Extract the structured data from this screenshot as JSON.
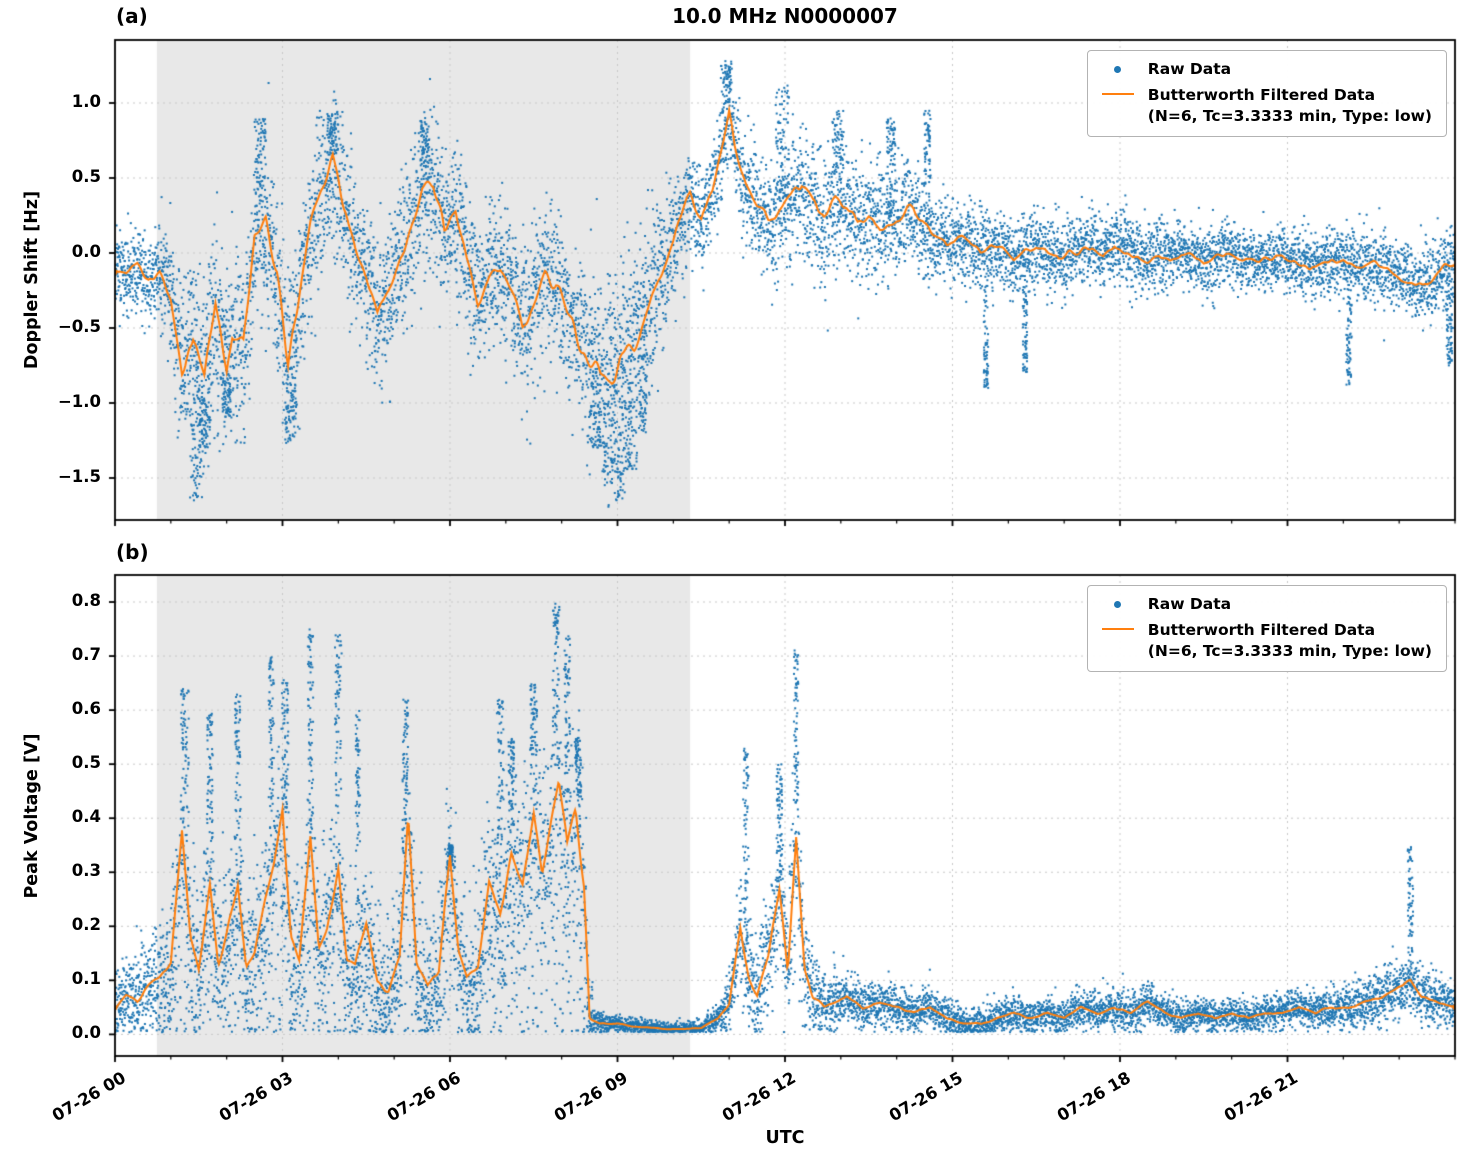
{
  "figure": {
    "title": "10.0 MHz N0000007",
    "colors": {
      "raw": "#1f77b4",
      "filtered": "#ff7f0e",
      "shade": "#e8e8e8",
      "grid": "#c9c9c9",
      "spine": "#000000",
      "background": "#ffffff"
    },
    "x_axis": {
      "label": "UTC",
      "lim_hours": [
        0,
        24
      ],
      "major_tick_hours": [
        0,
        3,
        6,
        9,
        12,
        15,
        18,
        21
      ],
      "tick_labels": [
        "07-26 00",
        "07-26 03",
        "07-26 06",
        "07-26 09",
        "07-26 12",
        "07-26 15",
        "07-26 18",
        "07-26 21"
      ],
      "minor_tick_step_hours": 1
    }
  },
  "legend": {
    "raw_label": "Raw Data",
    "filtered_label": "Butterworth Filtered Data",
    "filtered_sublabel": "(N=6, Tc=3.3333 min, Type: low)"
  },
  "chart_data": [
    {
      "type": "scatter",
      "panel": "(a)",
      "ylabel": "Doppler Shift [Hz]",
      "ylim": [
        -1.78,
        1.42
      ],
      "yticks": [
        1.0,
        0.5,
        0.0,
        -0.5,
        -1.0,
        -1.5
      ],
      "ytick_labels": [
        "1.0",
        "0.5",
        "0.0",
        "−0.5",
        "−1.0",
        "−1.5"
      ],
      "grid": true,
      "shade_hours": [
        0.75,
        10.3
      ],
      "clamp_positive": false,
      "wiggle": 0.13,
      "series": [
        {
          "name": "Raw Data",
          "type": "scatter",
          "points_estimated": true,
          "n_points": 9500,
          "seed": 11,
          "envelope_x": [
            0,
            0.75,
            1,
            1.5,
            2,
            2.5,
            3,
            3.5,
            4,
            4.5,
            5,
            5.5,
            6,
            6.5,
            7,
            7.5,
            8,
            8.5,
            9,
            9.5,
            10,
            10.5,
            11,
            11.5,
            12,
            12.5,
            13,
            14,
            15,
            16,
            17,
            18,
            19,
            20,
            21,
            22,
            23,
            24
          ],
          "envelope_std": [
            0.12,
            0.15,
            0.25,
            0.33,
            0.3,
            0.27,
            0.3,
            0.28,
            0.25,
            0.25,
            0.25,
            0.25,
            0.25,
            0.22,
            0.22,
            0.25,
            0.25,
            0.3,
            0.34,
            0.3,
            0.22,
            0.18,
            0.15,
            0.18,
            0.2,
            0.22,
            0.2,
            0.18,
            0.15,
            0.13,
            0.12,
            0.12,
            0.11,
            0.1,
            0.1,
            0.12,
            0.12,
            0.13
          ],
          "clusters": [
            {
              "t": 1.45,
              "peak": -1.65,
              "width": 0.12
            },
            {
              "t": 1.6,
              "peak": -1.3,
              "width": 0.1
            },
            {
              "t": 2.0,
              "peak": -1.1,
              "width": 0.08
            },
            {
              "t": 3.15,
              "peak": -1.25,
              "width": 0.1
            },
            {
              "t": 2.6,
              "peak": 0.9,
              "width": 0.1
            },
            {
              "t": 3.9,
              "peak": 0.95,
              "width": 0.1
            },
            {
              "t": 5.55,
              "peak": 0.9,
              "width": 0.08
            },
            {
              "t": 8.6,
              "peak": -1.3,
              "width": 0.1
            },
            {
              "t": 8.85,
              "peak": -1.55,
              "width": 0.12
            },
            {
              "t": 9.05,
              "peak": -1.65,
              "width": 0.1
            },
            {
              "t": 9.25,
              "peak": -1.45,
              "width": 0.1
            },
            {
              "t": 9.45,
              "peak": -1.2,
              "width": 0.08
            },
            {
              "t": 10.95,
              "peak": 1.28,
              "width": 0.1
            },
            {
              "t": 11.95,
              "peak": 1.12,
              "width": 0.12
            },
            {
              "t": 12.95,
              "peak": 0.95,
              "width": 0.1
            },
            {
              "t": 13.9,
              "peak": 0.9,
              "width": 0.08
            },
            {
              "t": 14.55,
              "peak": 0.95,
              "width": 0.06
            },
            {
              "t": 15.6,
              "peak": -0.9,
              "width": 0.04
            },
            {
              "t": 16.3,
              "peak": -0.8,
              "width": 0.04
            },
            {
              "t": 22.1,
              "peak": -0.9,
              "width": 0.05
            },
            {
              "t": 23.9,
              "peak": -0.75,
              "width": 0.05
            }
          ]
        },
        {
          "name": "Butterworth Filtered Data",
          "type": "line",
          "x": [
            0.0,
            0.2,
            0.4,
            0.6,
            0.8,
            1.0,
            1.2,
            1.4,
            1.6,
            1.8,
            2.0,
            2.1,
            2.3,
            2.5,
            2.7,
            2.9,
            3.0,
            3.1,
            3.3,
            3.5,
            3.7,
            3.9,
            4.1,
            4.3,
            4.5,
            4.7,
            4.9,
            5.1,
            5.3,
            5.5,
            5.7,
            5.9,
            6.1,
            6.3,
            6.5,
            6.7,
            6.9,
            7.1,
            7.3,
            7.5,
            7.7,
            7.9,
            8.1,
            8.3,
            8.5,
            8.7,
            8.9,
            9.1,
            9.3,
            9.5,
            9.7,
            9.9,
            10.1,
            10.3,
            10.5,
            10.7,
            10.9,
            11.0,
            11.1,
            11.3,
            11.5,
            11.7,
            11.9,
            12.1,
            12.3,
            12.5,
            12.7,
            12.9,
            13.1,
            13.3,
            13.5,
            13.7,
            13.9,
            14.1,
            14.3,
            14.5,
            14.7,
            14.9,
            15.1,
            15.3,
            15.5,
            15.7,
            15.9,
            16.1,
            16.3,
            16.5,
            16.7,
            16.9,
            17.1,
            17.3,
            17.5,
            17.7,
            17.9,
            18.1,
            18.3,
            18.5,
            18.7,
            18.9,
            19.1,
            19.3,
            19.5,
            19.7,
            19.9,
            20.2,
            20.5,
            20.8,
            21.1,
            21.4,
            21.7,
            22.0,
            22.3,
            22.6,
            22.9,
            23.2,
            23.5,
            23.8,
            24.0
          ],
          "y": [
            -0.1,
            -0.15,
            -0.1,
            -0.2,
            -0.15,
            -0.3,
            -0.75,
            -0.55,
            -0.85,
            -0.35,
            -0.8,
            -0.55,
            -0.65,
            0.1,
            0.2,
            -0.15,
            -0.45,
            -0.75,
            -0.25,
            0.15,
            0.4,
            0.6,
            0.3,
            0.05,
            -0.15,
            -0.45,
            -0.3,
            -0.05,
            0.15,
            0.45,
            0.5,
            0.15,
            0.3,
            -0.05,
            -0.3,
            -0.15,
            -0.1,
            -0.25,
            -0.5,
            -0.35,
            -0.15,
            -0.2,
            -0.4,
            -0.55,
            -0.7,
            -0.8,
            -0.75,
            -0.65,
            -0.55,
            -0.4,
            -0.25,
            -0.05,
            0.2,
            0.35,
            0.2,
            0.4,
            0.75,
            0.95,
            0.7,
            0.45,
            0.3,
            0.25,
            0.3,
            0.35,
            0.45,
            0.3,
            0.25,
            0.35,
            0.3,
            0.2,
            0.25,
            0.15,
            0.2,
            0.25,
            0.3,
            0.15,
            0.1,
            0.05,
            0.1,
            0.08,
            0.0,
            0.05,
            0.02,
            -0.05,
            0.0,
            0.05,
            0.0,
            -0.05,
            0.0,
            0.03,
            0.05,
            -0.03,
            0.08,
            0.02,
            -0.02,
            -0.05,
            0.0,
            -0.04,
            0.0,
            -0.02,
            -0.08,
            -0.04,
            0.0,
            -0.04,
            -0.06,
            -0.02,
            -0.05,
            -0.1,
            -0.06,
            -0.05,
            -0.1,
            -0.08,
            -0.14,
            -0.18,
            -0.22,
            -0.12,
            -0.08
          ]
        }
      ]
    },
    {
      "type": "scatter",
      "panel": "(b)",
      "ylabel": "Peak Voltage [V]",
      "ylim": [
        -0.04,
        0.85
      ],
      "yticks": [
        0.8,
        0.7,
        0.6,
        0.5,
        0.4,
        0.3,
        0.2,
        0.1,
        0.0
      ],
      "ytick_labels": [
        "0.8",
        "0.7",
        "0.6",
        "0.5",
        "0.4",
        "0.3",
        "0.2",
        "0.1",
        "0.0"
      ],
      "grid": true,
      "shade_hours": [
        0.75,
        10.3
      ],
      "clamp_positive": true,
      "wiggle": 0.03,
      "series": [
        {
          "name": "Raw Data",
          "type": "scatter",
          "points_estimated": true,
          "n_points": 9500,
          "seed": 29,
          "envelope_x": [
            0,
            0.75,
            1,
            1.5,
            2,
            2.5,
            3,
            3.5,
            4,
            4.5,
            5,
            5.5,
            6,
            6.5,
            7,
            7.5,
            8,
            8.4,
            8.6,
            9,
            9.5,
            10,
            10.5,
            10.8,
            11.2,
            11.6,
            11.9,
            12.2,
            12.5,
            13,
            14,
            15,
            16,
            17,
            18,
            19,
            20,
            21,
            22,
            23,
            23.5,
            24
          ],
          "envelope_std": [
            0.03,
            0.05,
            0.06,
            0.07,
            0.07,
            0.075,
            0.08,
            0.075,
            0.07,
            0.07,
            0.07,
            0.07,
            0.07,
            0.08,
            0.09,
            0.09,
            0.1,
            0.09,
            0.012,
            0.008,
            0.007,
            0.006,
            0.006,
            0.01,
            0.05,
            0.05,
            0.06,
            0.08,
            0.04,
            0.025,
            0.02,
            0.015,
            0.015,
            0.015,
            0.02,
            0.015,
            0.015,
            0.015,
            0.02,
            0.03,
            0.025,
            0.02
          ],
          "clusters": [
            {
              "t": 1.25,
              "peak": 0.64,
              "width": 0.07
            },
            {
              "t": 1.7,
              "peak": 0.6,
              "width": 0.05
            },
            {
              "t": 2.2,
              "peak": 0.63,
              "width": 0.05
            },
            {
              "t": 2.8,
              "peak": 0.7,
              "width": 0.05
            },
            {
              "t": 3.05,
              "peak": 0.66,
              "width": 0.06
            },
            {
              "t": 3.5,
              "peak": 0.75,
              "width": 0.05
            },
            {
              "t": 4.0,
              "peak": 0.74,
              "width": 0.06
            },
            {
              "t": 4.35,
              "peak": 0.6,
              "width": 0.04
            },
            {
              "t": 5.2,
              "peak": 0.62,
              "width": 0.05
            },
            {
              "t": 6.0,
              "peak": 0.35,
              "width": 0.05
            },
            {
              "t": 6.9,
              "peak": 0.62,
              "width": 0.06
            },
            {
              "t": 7.1,
              "peak": 0.55,
              "width": 0.05
            },
            {
              "t": 7.5,
              "peak": 0.65,
              "width": 0.06
            },
            {
              "t": 7.9,
              "peak": 0.8,
              "width": 0.06
            },
            {
              "t": 8.1,
              "peak": 0.74,
              "width": 0.05
            },
            {
              "t": 8.3,
              "peak": 0.55,
              "width": 0.05
            },
            {
              "t": 11.3,
              "peak": 0.53,
              "width": 0.05
            },
            {
              "t": 11.9,
              "peak": 0.5,
              "width": 0.05
            },
            {
              "t": 12.2,
              "peak": 0.72,
              "width": 0.04
            },
            {
              "t": 23.2,
              "peak": 0.35,
              "width": 0.05
            }
          ]
        },
        {
          "name": "Butterworth Filtered Data",
          "type": "line",
          "x": [
            0.0,
            0.2,
            0.4,
            0.6,
            0.8,
            1.0,
            1.2,
            1.35,
            1.5,
            1.7,
            1.85,
            2.0,
            2.2,
            2.35,
            2.5,
            2.7,
            2.85,
            3.0,
            3.15,
            3.3,
            3.5,
            3.65,
            3.8,
            4.0,
            4.15,
            4.3,
            4.5,
            4.7,
            4.9,
            5.1,
            5.25,
            5.4,
            5.6,
            5.8,
            6.0,
            6.15,
            6.3,
            6.5,
            6.7,
            6.9,
            7.1,
            7.3,
            7.5,
            7.65,
            7.8,
            7.95,
            8.1,
            8.25,
            8.4,
            8.5,
            8.7,
            9.0,
            9.3,
            9.6,
            9.9,
            10.2,
            10.5,
            10.8,
            11.0,
            11.2,
            11.35,
            11.5,
            11.7,
            11.9,
            12.05,
            12.2,
            12.35,
            12.5,
            12.7,
            12.9,
            13.1,
            13.4,
            13.7,
            14.0,
            14.3,
            14.6,
            14.9,
            15.2,
            15.5,
            15.8,
            16.1,
            16.4,
            16.7,
            17.0,
            17.3,
            17.6,
            17.9,
            18.2,
            18.5,
            18.8,
            19.1,
            19.4,
            19.7,
            20.0,
            20.3,
            20.6,
            20.9,
            21.2,
            21.5,
            21.8,
            22.1,
            22.4,
            22.7,
            23.0,
            23.2,
            23.4,
            23.7,
            24.0
          ],
          "y": [
            0.05,
            0.07,
            0.06,
            0.09,
            0.11,
            0.13,
            0.37,
            0.18,
            0.12,
            0.28,
            0.13,
            0.18,
            0.28,
            0.12,
            0.15,
            0.25,
            0.32,
            0.42,
            0.18,
            0.14,
            0.37,
            0.16,
            0.2,
            0.3,
            0.14,
            0.12,
            0.2,
            0.1,
            0.09,
            0.15,
            0.41,
            0.14,
            0.09,
            0.12,
            0.33,
            0.15,
            0.1,
            0.12,
            0.28,
            0.22,
            0.33,
            0.28,
            0.42,
            0.3,
            0.38,
            0.47,
            0.35,
            0.42,
            0.28,
            0.03,
            0.02,
            0.02,
            0.015,
            0.012,
            0.01,
            0.01,
            0.012,
            0.03,
            0.06,
            0.2,
            0.1,
            0.07,
            0.15,
            0.27,
            0.12,
            0.37,
            0.12,
            0.07,
            0.05,
            0.06,
            0.07,
            0.05,
            0.06,
            0.05,
            0.04,
            0.05,
            0.03,
            0.02,
            0.02,
            0.03,
            0.04,
            0.03,
            0.04,
            0.03,
            0.05,
            0.04,
            0.05,
            0.04,
            0.06,
            0.04,
            0.03,
            0.04,
            0.03,
            0.04,
            0.03,
            0.04,
            0.04,
            0.05,
            0.04,
            0.05,
            0.05,
            0.06,
            0.07,
            0.09,
            0.1,
            0.07,
            0.06,
            0.05
          ]
        }
      ]
    }
  ]
}
